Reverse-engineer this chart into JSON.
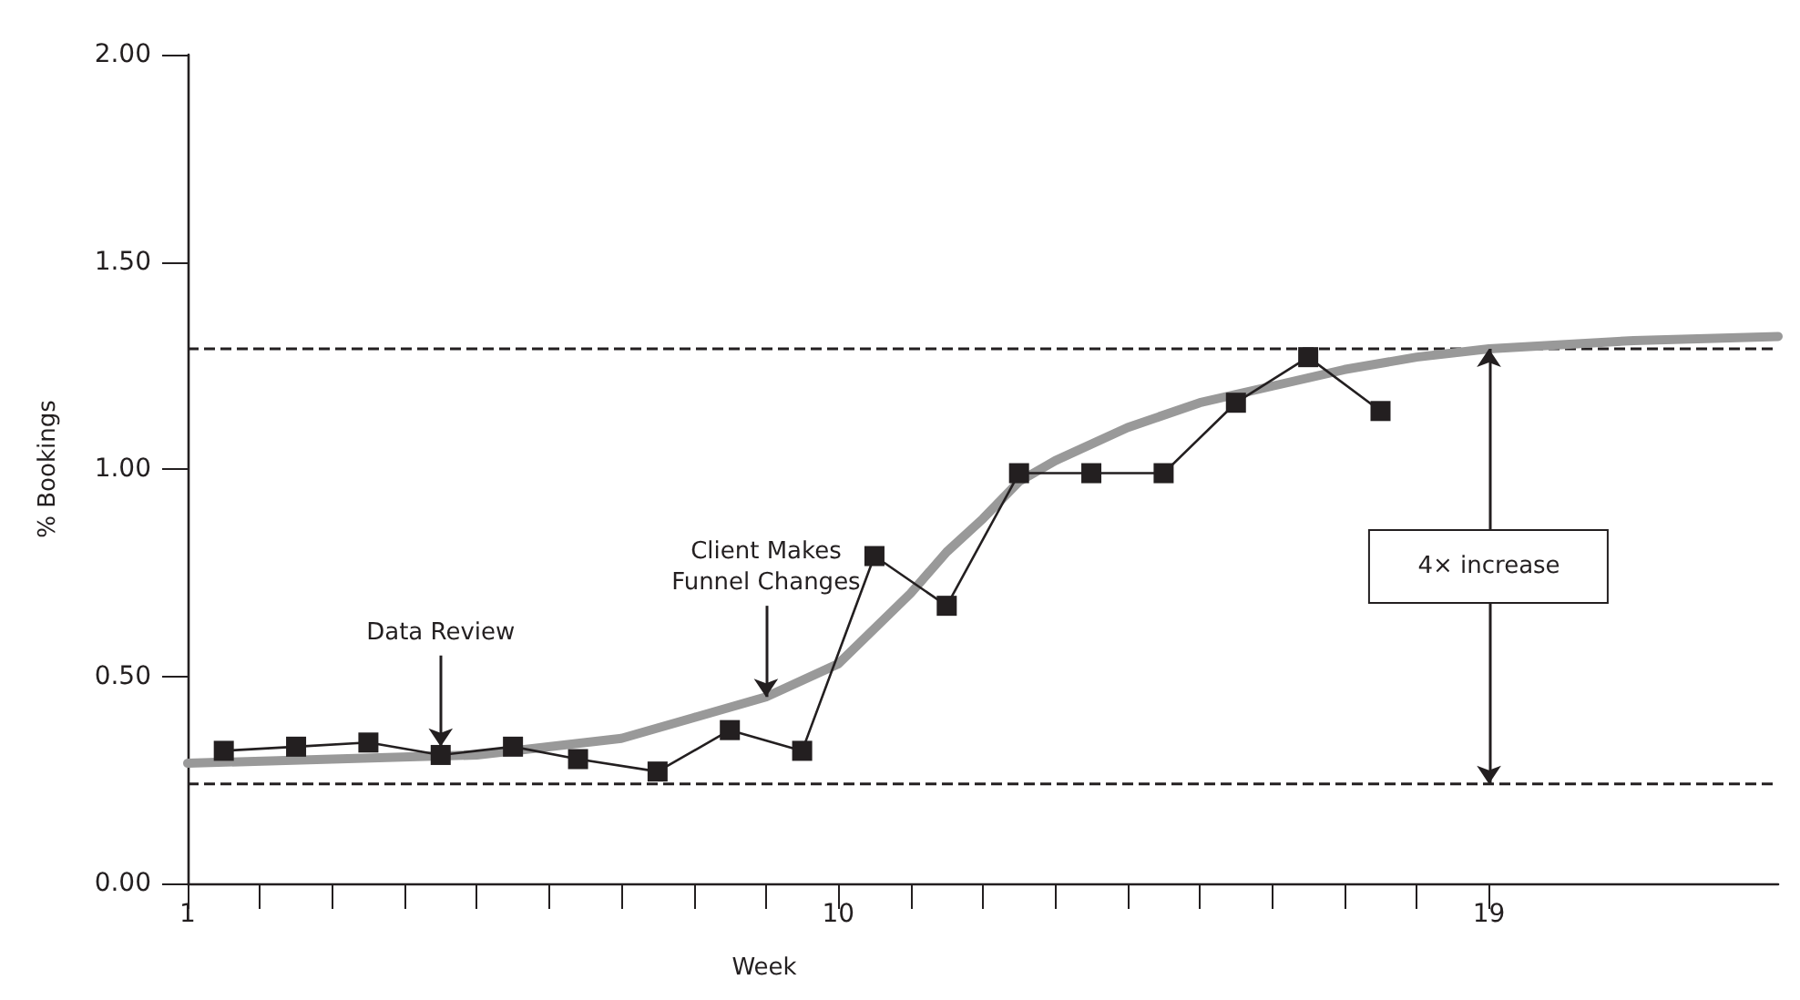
{
  "chart_data": {
    "type": "line",
    "xlabel": "Week",
    "ylabel": "% Bookings",
    "xlim": [
      1,
      23
    ],
    "ylim": [
      0,
      2
    ],
    "xticks": [
      {
        "value": 1,
        "label": "1"
      },
      {
        "value": 2,
        "label": null
      },
      {
        "value": 3,
        "label": null
      },
      {
        "value": 4,
        "label": null
      },
      {
        "value": 5,
        "label": null
      },
      {
        "value": 6,
        "label": null
      },
      {
        "value": 7,
        "label": null
      },
      {
        "value": 8,
        "label": null
      },
      {
        "value": 9,
        "label": null
      },
      {
        "value": 10,
        "label": "10"
      },
      {
        "value": 11,
        "label": null
      },
      {
        "value": 12,
        "label": null
      },
      {
        "value": 13,
        "label": null
      },
      {
        "value": 14,
        "label": null
      },
      {
        "value": 15,
        "label": null
      },
      {
        "value": 16,
        "label": null
      },
      {
        "value": 17,
        "label": null
      },
      {
        "value": 18,
        "label": null
      },
      {
        "value": 19,
        "label": "19"
      }
    ],
    "yticks": [
      {
        "value": 0,
        "label": "0.00"
      },
      {
        "value": 0.5,
        "label": "0.50"
      },
      {
        "value": 1,
        "label": "1.00"
      },
      {
        "value": 1.5,
        "label": "1.50"
      },
      {
        "value": 2,
        "label": "2.00"
      }
    ],
    "grid": false,
    "series": [
      {
        "color": "#999999",
        "marker": "none",
        "x": [
          1,
          3,
          5,
          7,
          8,
          9,
          10,
          11,
          11.5,
          12,
          12.5,
          13,
          14,
          15,
          16,
          17,
          18,
          19,
          21,
          23
        ],
        "values": [
          0.29,
          0.3,
          0.31,
          0.35,
          0.4,
          0.45,
          0.53,
          0.7,
          0.8,
          0.88,
          0.97,
          1.02,
          1.1,
          1.16,
          1.2,
          1.24,
          1.27,
          1.29,
          1.31,
          1.32
        ]
      },
      {
        "color": "#231f20",
        "marker": "square",
        "x": [
          1.5,
          2.5,
          3.5,
          4.5,
          5.5,
          6.4,
          7.5,
          8.5,
          9.5,
          10.5,
          11.5,
          12.5,
          13.5,
          14.5,
          15.5,
          16.5,
          17.5
        ],
        "values": [
          0.32,
          0.33,
          0.34,
          0.31,
          0.33,
          0.3,
          0.27,
          0.37,
          0.32,
          0.79,
          0.67,
          0.99,
          0.99,
          0.99,
          1.16,
          1.27,
          1.14
        ]
      }
    ],
    "ref_lines": [
      {
        "axis": "y",
        "value": 0.24,
        "line_style": "dashed",
        "color": "#231f20"
      },
      {
        "axis": "y",
        "value": 1.29,
        "line_style": "dashed",
        "color": "#231f20"
      }
    ],
    "annotations": [
      {
        "text": "Data Review",
        "x": 4.5,
        "y": 0.33
      },
      {
        "text": "Client Makes\nFunnel Changes",
        "x": 9,
        "y": 0.45
      },
      "4× increase"
    ]
  }
}
